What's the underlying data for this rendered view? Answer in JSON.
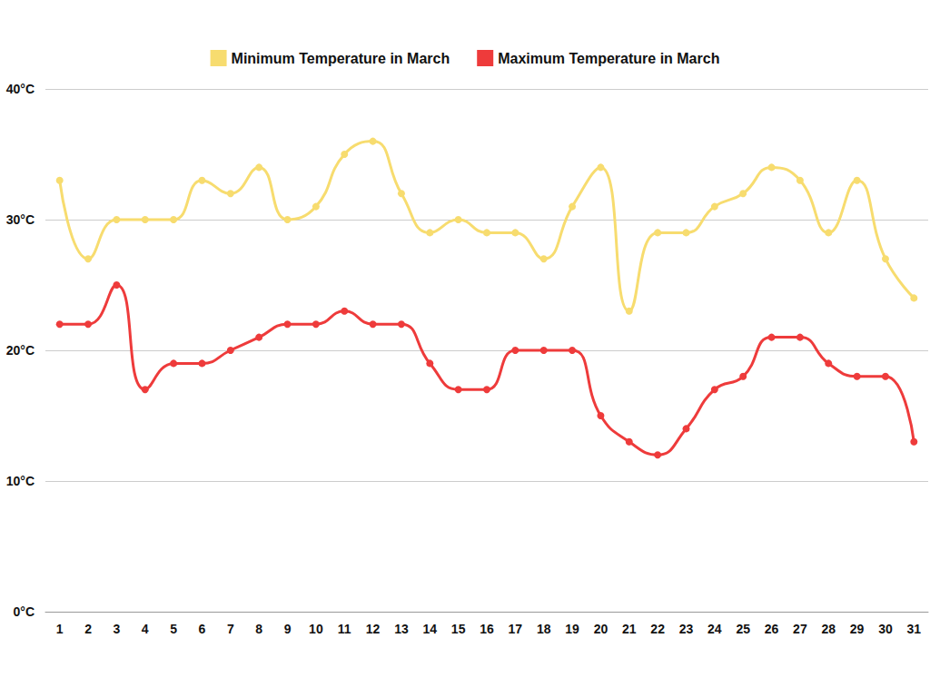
{
  "chart_data": {
    "type": "line",
    "categories": [
      "1",
      "2",
      "3",
      "4",
      "5",
      "6",
      "7",
      "8",
      "9",
      "10",
      "11",
      "12",
      "13",
      "14",
      "15",
      "16",
      "17",
      "18",
      "19",
      "20",
      "21",
      "22",
      "23",
      "24",
      "25",
      "26",
      "27",
      "28",
      "29",
      "30",
      "31"
    ],
    "series": [
      {
        "name": "Minimum Temperature in March",
        "color": "#f7dc6f",
        "marker": "circle",
        "line_style": "solid",
        "values": [
          33,
          27,
          30,
          30,
          30,
          33,
          32,
          34,
          30,
          31,
          35,
          36,
          32,
          29,
          30,
          29,
          29,
          27,
          31,
          34,
          23,
          29,
          29,
          31,
          32,
          34,
          33,
          29,
          33,
          27,
          24
        ]
      },
      {
        "name": "Maximum Temperature in March",
        "color": "#ee3b3b",
        "marker": "circle",
        "line_style": "solid",
        "values": [
          22,
          22,
          25,
          17,
          19,
          19,
          20,
          21,
          22,
          22,
          23,
          22,
          22,
          19,
          17,
          17,
          20,
          20,
          20,
          15,
          13,
          12,
          14,
          17,
          18,
          21,
          21,
          19,
          18,
          18,
          13
        ]
      }
    ],
    "ylim": [
      0,
      40
    ],
    "yticks": [
      {
        "value": 0,
        "label": "0°C"
      },
      {
        "value": 10,
        "label": "10°C"
      },
      {
        "value": 20,
        "label": "20°C"
      },
      {
        "value": 30,
        "label": "30°C"
      },
      {
        "value": 40,
        "label": "40°C"
      }
    ],
    "grid": true,
    "legend": "top"
  }
}
